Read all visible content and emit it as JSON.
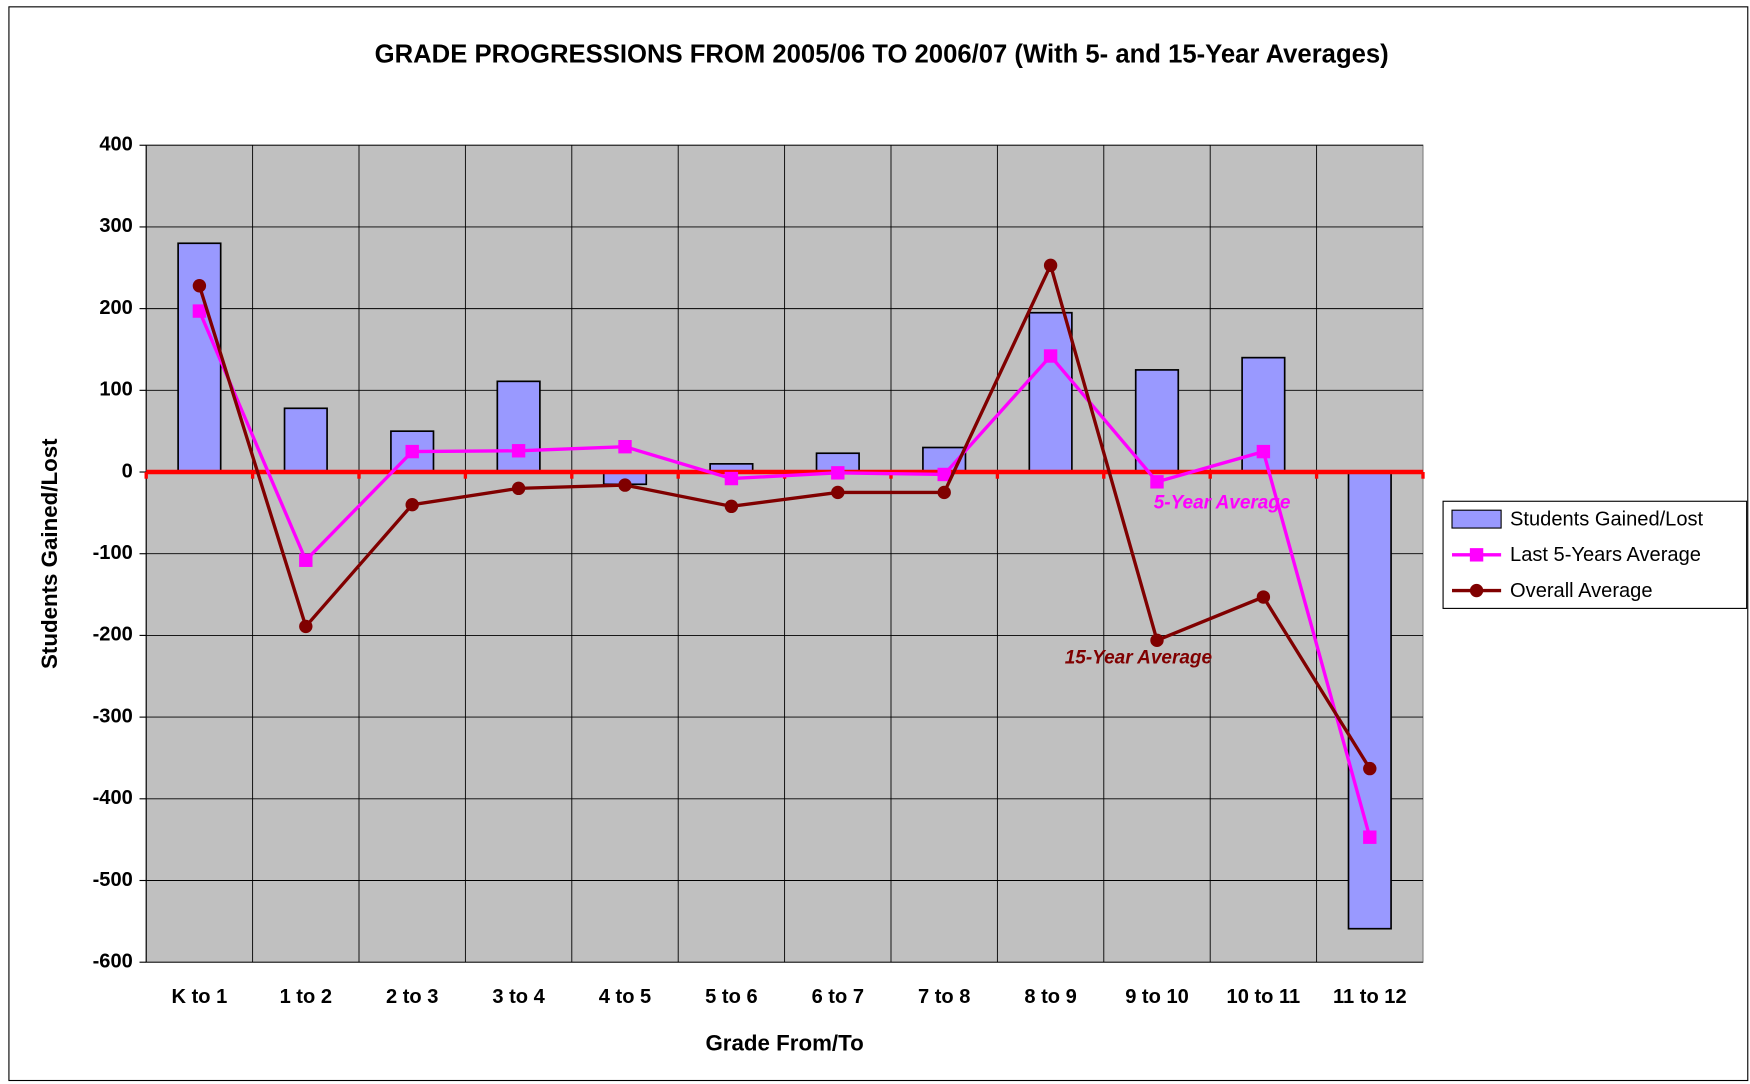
{
  "chart_data": {
    "type": "bar_line",
    "title": "GRADE PROGRESSIONS FROM 2005/06 TO 2006/07 (With 5- and 15-Year Averages)",
    "x_label": "Grade From/To",
    "y_label": "Students Gained/Lost",
    "categories": [
      "K to 1",
      "1 to 2",
      "2 to 3",
      "3 to 4",
      "4 to 5",
      "5 to 6",
      "6 to 7",
      "7 to 8",
      "8 to 9",
      "9 to 10",
      "10 to 11",
      "11 to 12"
    ],
    "series": [
      {
        "name": "Students Gained/Lost",
        "type": "bar",
        "color": "#9999ff",
        "values": [
          280,
          78,
          50,
          111,
          -15,
          10,
          23,
          30,
          195,
          125,
          140,
          -559
        ]
      },
      {
        "name": "Last 5-Years Average",
        "type": "line",
        "marker": "square",
        "color": "#ff00ff",
        "values": [
          197,
          -108,
          25,
          26,
          31,
          -8,
          -1,
          -3,
          142,
          -12,
          25,
          -447
        ]
      },
      {
        "name": "Overall Average",
        "type": "line",
        "marker": "circle",
        "color": "#800000",
        "values": [
          228,
          -189,
          -40,
          -20,
          -16,
          -42,
          -25,
          -25,
          253,
          -206,
          -153,
          -363
        ]
      }
    ],
    "annotations": [
      {
        "text": "5-Year Average",
        "color": "#ff00ff"
      },
      {
        "text": "15-Year Average",
        "color": "#800000"
      }
    ],
    "ylim": [
      -600,
      400
    ],
    "yticks": [
      -600,
      -500,
      -400,
      -300,
      -200,
      -100,
      0,
      100,
      200,
      300,
      400
    ],
    "grid": true,
    "legend": "right"
  }
}
